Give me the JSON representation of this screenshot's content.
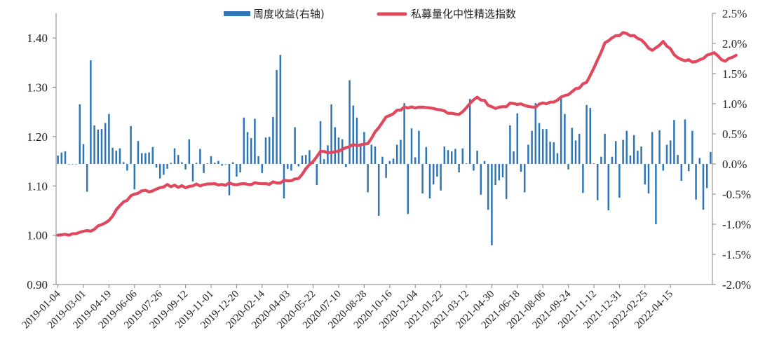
{
  "chart_data": {
    "type": "bar+line",
    "title": "",
    "legend": {
      "placement": "top-center",
      "entries": [
        "周度收益(右轴)",
        "私募量化中性精选指数"
      ]
    },
    "colors": {
      "bar": "#2e75b6",
      "line": "#e0485e",
      "axis": "#808080"
    },
    "y_left": {
      "range": [
        0.9,
        1.45
      ],
      "ticks": [
        "0.90",
        "1.00",
        "1.10",
        "1.20",
        "1.30",
        "1.40"
      ],
      "tick_values": [
        0.9,
        1.0,
        1.1,
        1.2,
        1.3,
        1.4
      ]
    },
    "y_right": {
      "range": [
        -0.02,
        0.025
      ],
      "ticks": [
        "-2.0%",
        "-1.5%",
        "-1.0%",
        "-0.5%",
        "0.0%",
        "0.5%",
        "1.0%",
        "1.5%",
        "2.0%",
        "2.5%"
      ],
      "tick_values": [
        -0.02,
        -0.015,
        -0.01,
        -0.005,
        0,
        0.005,
        0.01,
        0.015,
        0.02,
        0.025
      ]
    },
    "x_ticks": [
      "2019-01-04",
      "2019-03-01",
      "2019-04-19",
      "2019-06-06",
      "2019-07-26",
      "2019-09-12",
      "2019-11-01",
      "2019-12-20",
      "2020-02-14",
      "2020-04-03",
      "2020-05-22",
      "2020-07-10",
      "2020-08-28",
      "2020-10-16",
      "2020-12-04",
      "2021-01-22",
      "2021-03-12",
      "2021-04-30",
      "2021-06-18",
      "2021-08-06",
      "2021-09-24",
      "2021-11-12",
      "2021-12-31",
      "2022-02-25",
      "2022-04-15"
    ],
    "series": [
      {
        "name": "周度收益(右轴)",
        "type": "bar",
        "axis": "right",
        "values": [
          0.0014,
          0.0019,
          0.0021,
          0.0,
          0.0,
          0.0,
          0.0099,
          0.0033,
          -0.0046,
          0.0172,
          0.0064,
          0.0057,
          0.0058,
          0.0068,
          0.0083,
          0.0027,
          0.0022,
          0.0026,
          0.0003,
          -0.0011,
          0.0063,
          -0.0042,
          0.0038,
          0.0018,
          0.0018,
          0.0019,
          0.0028,
          -0.0006,
          -0.0024,
          -0.0018,
          -0.0008,
          0.0002,
          0.0026,
          0.0015,
          0.0003,
          -0.0009,
          0.0041,
          -0.0029,
          0.0002,
          0.0025,
          -0.0015,
          0.0001,
          0.0013,
          0.0002,
          0.0005,
          -0.0003,
          0.0,
          -0.0052,
          0.0003,
          -0.0021,
          -0.0014,
          0.0077,
          0.0053,
          0.0043,
          0.0075,
          0.0013,
          -0.0015,
          0.0044,
          0.0045,
          0.0078,
          0.0156,
          0.0181,
          -0.0057,
          -0.0008,
          -0.0011,
          0.0061,
          -0.0004,
          0.0014,
          0.0015,
          0.0023,
          0.0004,
          -0.0035,
          0.0071,
          0.0008,
          0.0031,
          0.0099,
          0.0061,
          0.0044,
          0.0041,
          -0.0005,
          0.0139,
          0.0097,
          0.0077,
          0.0034,
          0.0053,
          -0.0047,
          0.0032,
          0.0029,
          -0.0086,
          0.0012,
          -0.0023,
          0.0005,
          0.0009,
          0.0032,
          0.004,
          0.0101,
          -0.0083,
          0.0059,
          0.0011,
          0.0055,
          -0.0049,
          0.0028,
          -0.0057,
          -0.0034,
          -0.0021,
          -0.0044,
          0.0029,
          0.0023,
          0.0021,
          0.0025,
          -0.0014,
          0.0026,
          0.0001,
          0.0108,
          -0.0011,
          0.0022,
          -0.0051,
          0.0005,
          -0.0076,
          -0.0135,
          -0.0035,
          -0.0027,
          -0.0022,
          -0.0058,
          0.0064,
          0.0021,
          0.0084,
          -0.0013,
          -0.0047,
          0.0032,
          0.0055,
          0.0101,
          0.0068,
          0.0058,
          0.0058,
          0.0037,
          0.0036,
          0.0018,
          0.0112,
          0.0083,
          -0.0009,
          0.006,
          0.0039,
          0.005,
          -0.0048,
          0.0098,
          0.0093,
          0.0001,
          -0.006,
          0.0012,
          0.005,
          -0.0077,
          0.0012,
          0.0038,
          -0.0056,
          0.004,
          0.0055,
          0.0014,
          0.0048,
          0.0022,
          0.0029,
          -0.0034,
          -0.0049,
          0.0053,
          -0.01,
          0.0056,
          -0.0011,
          0.0032,
          0.0039,
          0.0073,
          0.0015,
          -0.0028,
          0.0074,
          -0.0012,
          0.0055,
          -0.0059,
          0.001,
          -0.0076,
          -0.004,
          0.002
        ]
      },
      {
        "name": "私募量化中性精选指数",
        "type": "line",
        "axis": "left",
        "x_index": [
          0,
          4,
          7,
          10,
          14,
          17,
          20,
          23,
          26,
          30,
          33,
          37,
          41,
          45,
          50,
          55,
          60,
          66,
          72,
          77,
          80,
          85,
          90,
          95,
          98,
          104,
          110,
          115,
          120,
          125,
          130,
          135,
          140,
          145,
          150,
          155,
          158,
          160,
          163,
          166,
          170,
          175,
          178,
          180,
          183,
          186
        ],
        "values": [
          1.0,
          1.003,
          1.008,
          1.012,
          1.03,
          1.06,
          1.08,
          1.09,
          1.09,
          1.103,
          1.097,
          1.1,
          1.104,
          1.103,
          1.104,
          1.105,
          1.106,
          1.115,
          1.17,
          1.17,
          1.18,
          1.186,
          1.24,
          1.26,
          1.258,
          1.255,
          1.245,
          1.28,
          1.257,
          1.267,
          1.26,
          1.27,
          1.285,
          1.31,
          1.39,
          1.411,
          1.405,
          1.396,
          1.375,
          1.393,
          1.36,
          1.352,
          1.365,
          1.37,
          1.353,
          1.365
        ]
      }
    ]
  }
}
